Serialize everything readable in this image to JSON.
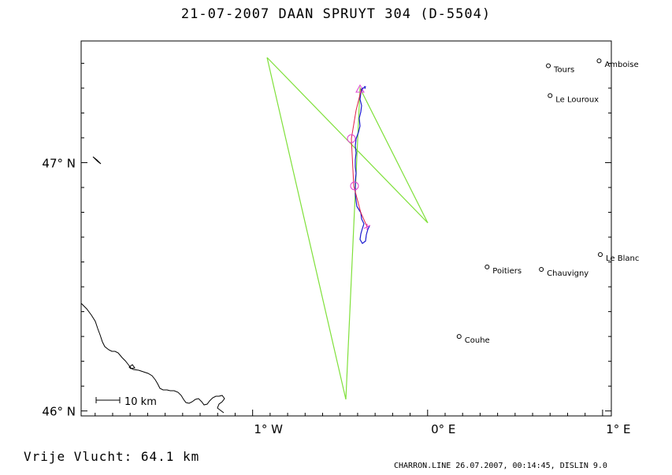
{
  "title": "21-07-2007   DAAN SPRUYT   304 (D-5504)",
  "footer": {
    "distance": "Vrije Vlucht:   64.1 km",
    "source": "CHARRON.LINE 26.07.2007, 00:14:45, DISLIN 9.0"
  },
  "scale_bar_label": "10 km",
  "axes": {
    "lat_labels": [
      {
        "value": 47,
        "label": "47° N"
      },
      {
        "value": 46,
        "label": "46° N"
      }
    ],
    "lon_labels": [
      {
        "value": -1,
        "label": "1° W"
      },
      {
        "value": 0,
        "label": "0° E"
      },
      {
        "value": 1,
        "label": "1° E"
      }
    ],
    "lon_range": [
      -1.98,
      1.05
    ],
    "lat_range": [
      45.98,
      47.49
    ]
  },
  "cities": [
    {
      "name": "Amboise",
      "lon": 0.98,
      "lat": 47.41
    },
    {
      "name": "Tours",
      "lon": 0.69,
      "lat": 47.39
    },
    {
      "name": "Le Louroux",
      "lon": 0.7,
      "lat": 47.27
    },
    {
      "name": "Poitiers",
      "lon": 0.34,
      "lat": 46.58
    },
    {
      "name": "Chauvigny",
      "lon": 0.65,
      "lat": 46.57
    },
    {
      "name": "Le Blanc",
      "lon": 1.07,
      "lat": 46.63
    },
    {
      "name": "Couhe",
      "lon": 0.18,
      "lat": 46.3
    }
  ],
  "colors": {
    "task": "#7fe03a",
    "route": "#e0204a",
    "track": "#1a1ad0",
    "turnpoint": "#e040d0",
    "frame": "#000000"
  }
}
